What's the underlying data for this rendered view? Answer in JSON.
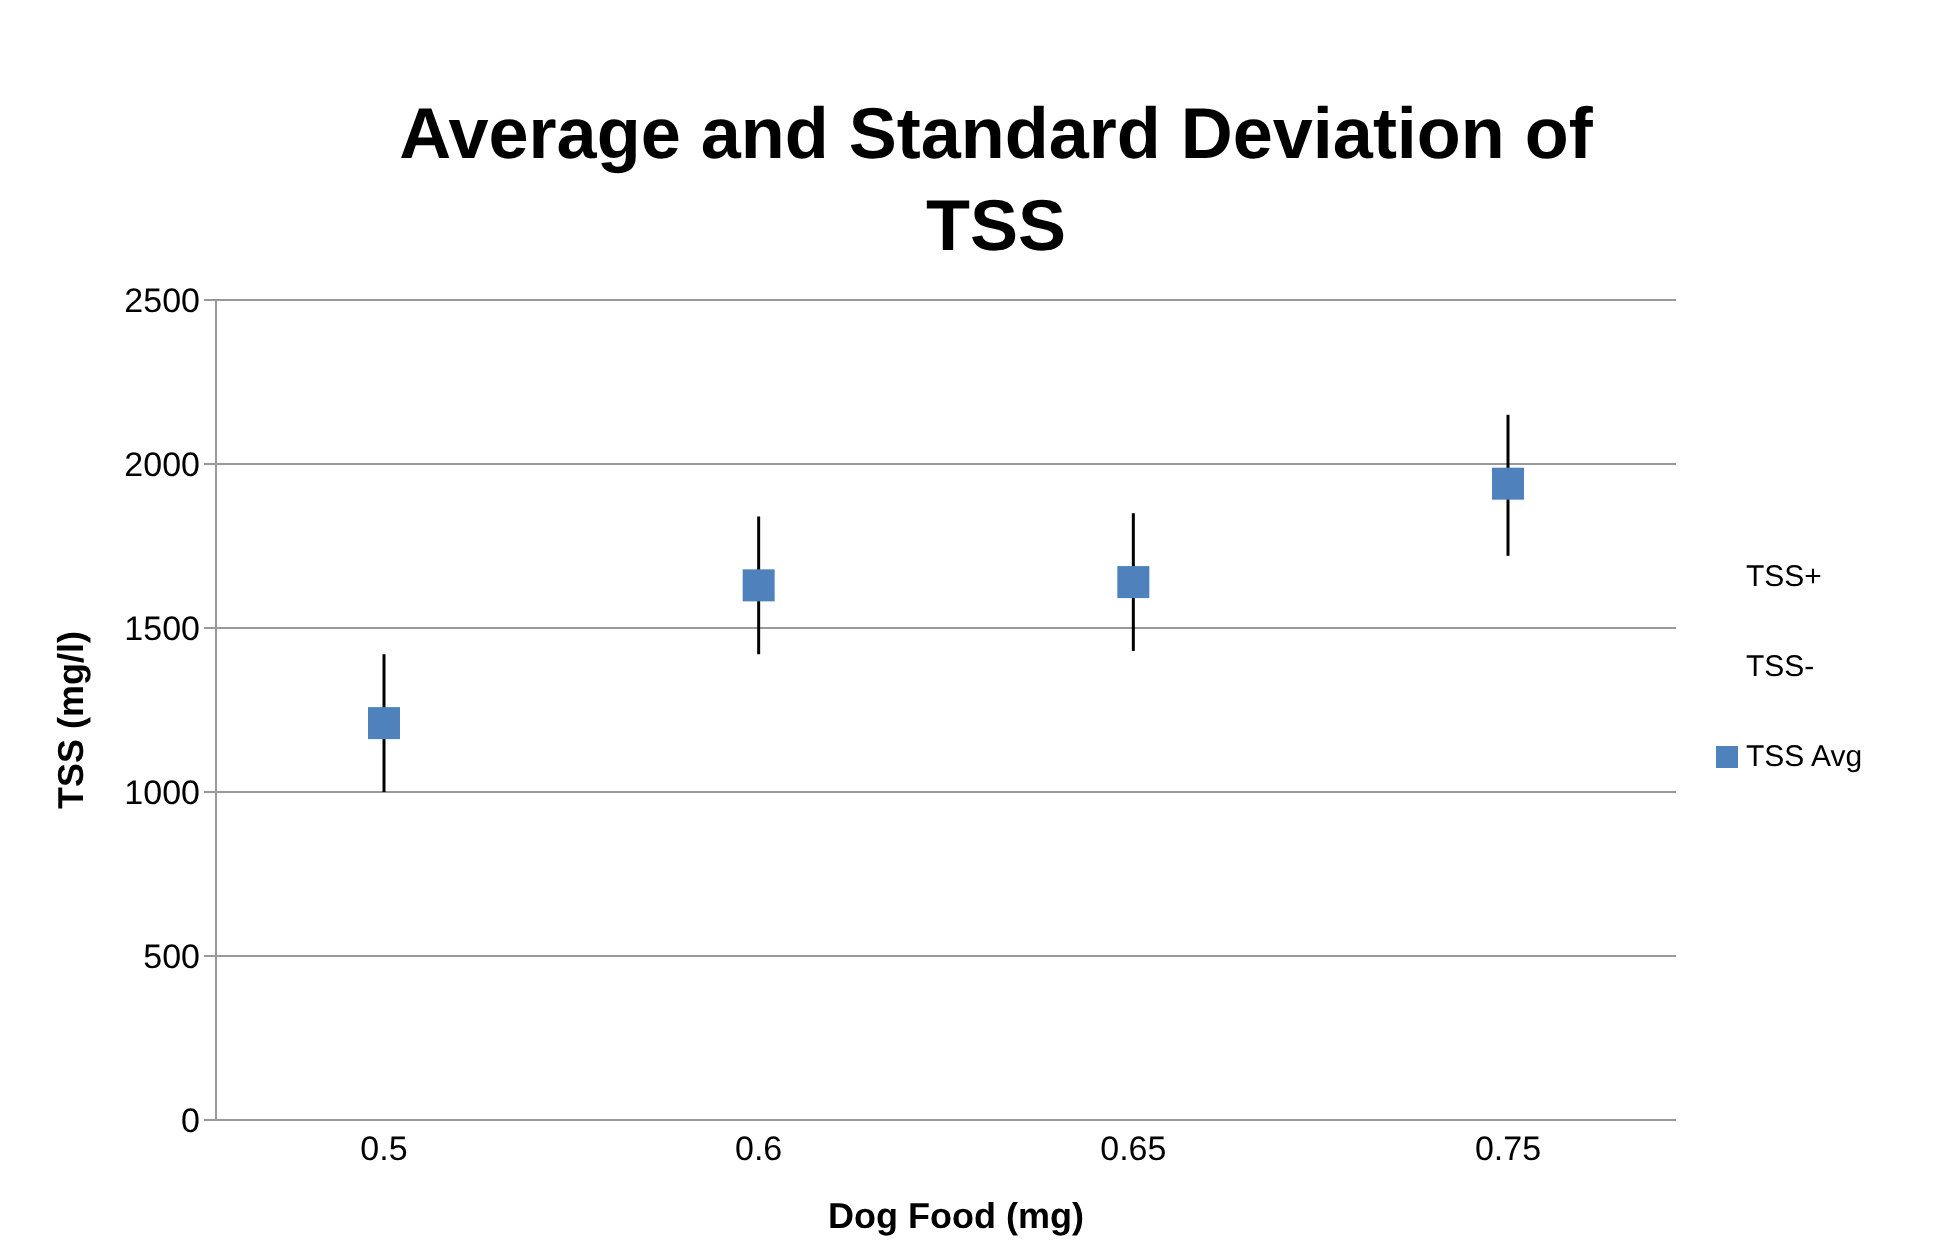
{
  "chart_data": {
    "type": "scatter",
    "title": "Average and Standard Deviation of TSS",
    "xlabel": "Dog Food (mg)",
    "ylabel": "TSS (mg/l)",
    "categories": [
      "0.5",
      "0.6",
      "0.65",
      "0.75"
    ],
    "series": [
      {
        "name": "TSS+",
        "color": "#000000",
        "marker": "none",
        "values": [
          null,
          null,
          null,
          null
        ]
      },
      {
        "name": "TSS-",
        "color": "#000000",
        "marker": "none",
        "values": [
          null,
          null,
          null,
          null
        ]
      },
      {
        "name": "TSS Avg",
        "color": "#4f81bd",
        "marker": "square",
        "values": [
          1210,
          1630,
          1640,
          1940
        ],
        "errors": [
          [
            1000,
            1420
          ],
          [
            1420,
            1840
          ],
          [
            1430,
            1850
          ],
          [
            1720,
            2150
          ]
        ]
      }
    ],
    "ylim": [
      0,
      2500
    ],
    "yticks": [
      0,
      500,
      1000,
      1500,
      2000,
      2500
    ],
    "grid": "y",
    "legend": "right"
  }
}
